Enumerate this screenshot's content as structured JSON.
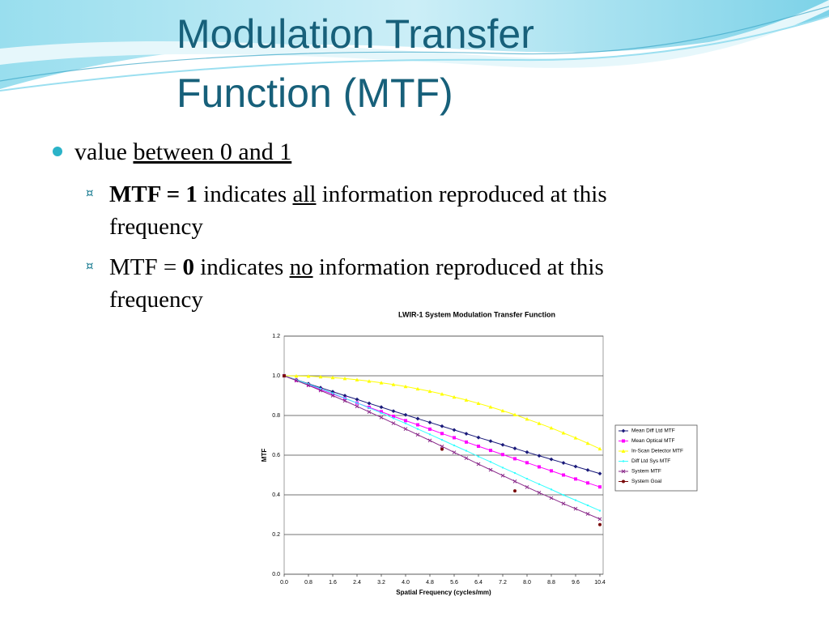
{
  "title": "Modulation Transfer Function (MTF)",
  "bullets": [
    {
      "parts": [
        "value ",
        "between 0 and 1"
      ]
    },
    {
      "marker": "¤",
      "parts": [
        "MTF = 1",
        " indicates ",
        "all",
        " information reproduced at this",
        "frequency"
      ]
    },
    {
      "marker": "¤",
      "parts": [
        "MTF = ",
        "0",
        " indicates ",
        "no",
        " information reproduced at this",
        "frequency"
      ]
    }
  ],
  "chart_data": {
    "type": "line",
    "title": "LWIR-1 System Modulation Transfer Function",
    "xlabel": "Spatial Frequency (cycles/mm)",
    "ylabel": "MTF",
    "x": [
      0,
      0.4,
      0.8,
      1.2,
      1.6,
      2.0,
      2.4,
      2.8,
      3.2,
      3.6,
      4.0,
      4.4,
      4.8,
      5.2,
      5.6,
      6.0,
      6.4,
      6.8,
      7.2,
      7.6,
      8.0,
      8.4,
      8.8,
      9.2,
      9.6,
      10.0,
      10.4
    ],
    "xlim": [
      0,
      10.4
    ],
    "xticks": [
      {
        "value": 0,
        "label": "0.0"
      },
      0.8,
      1.6,
      2.4,
      3.2,
      {
        "value": 4,
        "label": "4.0"
      },
      4.8,
      5.6,
      6.4,
      7.2,
      {
        "value": 8,
        "label": "8.0"
      },
      8.8,
      9.6,
      10.4
    ],
    "ylim": [
      0,
      1.2
    ],
    "yticks": [
      {
        "value": 0,
        "label": "0.0"
      },
      0.2,
      0.4,
      0.6,
      0.8,
      {
        "value": 1,
        "label": "1.0"
      },
      1.2
    ],
    "grid": true,
    "legend": "right",
    "series": [
      {
        "name": "Mean Diff Ltd MTF",
        "color": "#1a1a7a",
        "marker": "diamond",
        "values": [
          1.0,
          0.98,
          0.96,
          0.94,
          0.92,
          0.9,
          0.881,
          0.861,
          0.842,
          0.822,
          0.803,
          0.784,
          0.765,
          0.746,
          0.727,
          0.708,
          0.689,
          0.671,
          0.652,
          0.634,
          0.615,
          0.597,
          0.579,
          0.561,
          0.543,
          0.525,
          0.507
        ]
      },
      {
        "name": "Mean Optical MTF",
        "color": "#ff00ff",
        "marker": "square",
        "values": [
          1.0,
          0.977,
          0.954,
          0.931,
          0.908,
          0.886,
          0.863,
          0.841,
          0.819,
          0.796,
          0.774,
          0.753,
          0.731,
          0.709,
          0.688,
          0.666,
          0.645,
          0.624,
          0.603,
          0.582,
          0.562,
          0.541,
          0.521,
          0.5,
          0.48,
          0.46,
          0.44
        ]
      },
      {
        "name": "In-Scan Detector MTF",
        "color": "#ffff00",
        "marker": "triangle",
        "values": [
          1.0,
          0.999,
          0.998,
          0.995,
          0.991,
          0.986,
          0.98,
          0.973,
          0.965,
          0.956,
          0.946,
          0.934,
          0.922,
          0.908,
          0.893,
          0.878,
          0.861,
          0.843,
          0.824,
          0.804,
          0.782,
          0.76,
          0.737,
          0.712,
          0.687,
          0.66,
          0.632
        ]
      },
      {
        "name": "Diff Ltd Sys MTF",
        "color": "#33ffff",
        "marker": "dot",
        "values": [
          1.0,
          0.979,
          0.958,
          0.935,
          0.912,
          0.887,
          0.863,
          0.838,
          0.813,
          0.786,
          0.76,
          0.732,
          0.705,
          0.677,
          0.649,
          0.622,
          0.593,
          0.566,
          0.537,
          0.51,
          0.481,
          0.454,
          0.427,
          0.399,
          0.373,
          0.347,
          0.32
        ]
      },
      {
        "name": "System MTF",
        "color": "#8a2a8a",
        "marker": "x",
        "values": [
          1.0,
          0.976,
          0.952,
          0.926,
          0.9,
          0.874,
          0.846,
          0.818,
          0.79,
          0.761,
          0.732,
          0.703,
          0.674,
          0.644,
          0.614,
          0.585,
          0.555,
          0.526,
          0.497,
          0.468,
          0.439,
          0.411,
          0.384,
          0.356,
          0.33,
          0.304,
          0.278
        ]
      },
      {
        "name": "System Goal",
        "color": "#7a0a0a",
        "marker": "circle",
        "line": false,
        "x": [
          0,
          5.2,
          7.6,
          10.4
        ],
        "values": [
          1.0,
          0.63,
          0.42,
          0.25
        ]
      }
    ]
  }
}
